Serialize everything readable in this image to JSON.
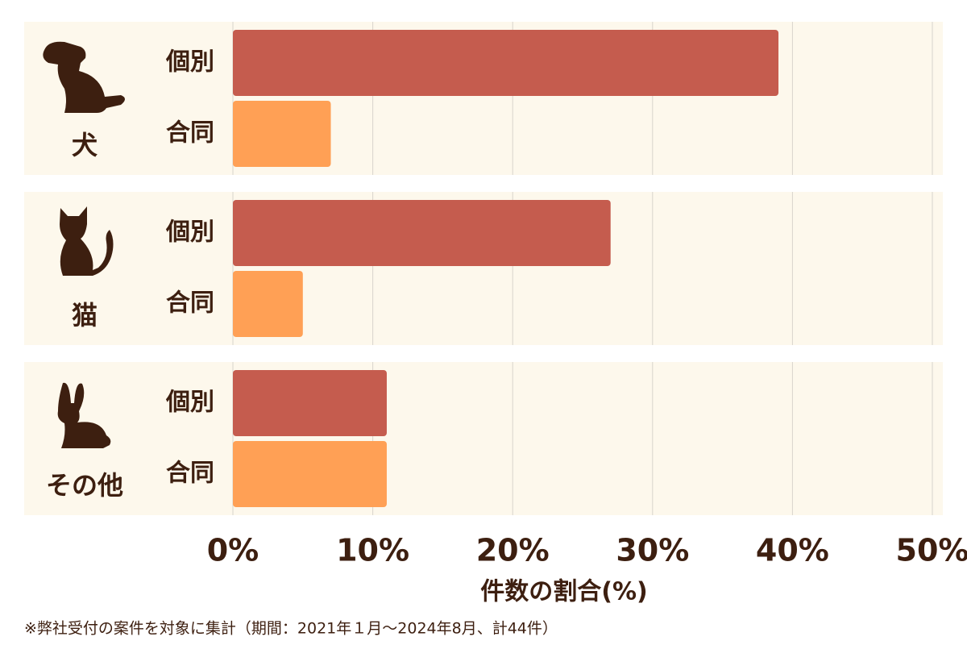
{
  "chart_data": {
    "type": "grouped-hbar",
    "categories": [
      "犬",
      "猫",
      "その他"
    ],
    "series": [
      {
        "name": "個別",
        "color": "#c55c4e",
        "values": [
          39,
          27,
          11
        ]
      },
      {
        "name": "合同",
        "color": "#ffa055",
        "values": [
          7,
          5,
          11
        ]
      }
    ],
    "xlim": [
      0,
      50
    ],
    "xticks": [
      {
        "value": 0,
        "label": "0%"
      },
      {
        "value": 10,
        "label": "10%"
      },
      {
        "value": 20,
        "label": "20%"
      },
      {
        "value": 30,
        "label": "30%"
      },
      {
        "value": 40,
        "label": "40%"
      },
      {
        "value": 50,
        "label": "50%"
      }
    ],
    "x_label": "件数の割合(%)",
    "grid": true,
    "note": "※弊社受付の案件を対象に集計（期間：2021年１月～2024年8月、計44件）"
  }
}
